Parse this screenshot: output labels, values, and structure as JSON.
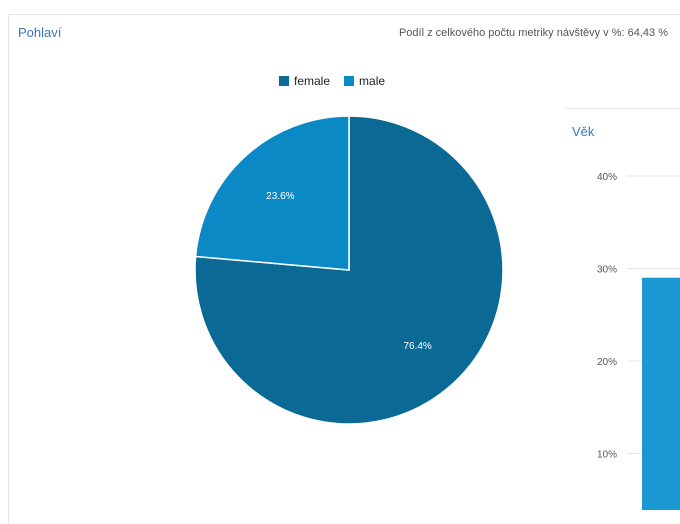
{
  "gender_panel": {
    "title": "Pohlaví",
    "subtitle": "Podíl z celkového počtu metriky návštěvy v %: 64,43 %"
  },
  "age_panel": {
    "title": "Věk"
  },
  "chart_data": [
    {
      "type": "pie",
      "legend": {
        "placement": "top"
      },
      "slices": [
        {
          "name": "female",
          "value": 76.4,
          "label": "76.4%",
          "color": "#0b6a95"
        },
        {
          "name": "male",
          "value": 23.6,
          "label": "23.6%",
          "color": "#0b89c4"
        }
      ]
    },
    {
      "type": "bar",
      "ylim": [
        0,
        40
      ],
      "yticks": [
        {
          "value": 40,
          "label": "40%"
        },
        {
          "value": 30,
          "label": "30%"
        },
        {
          "value": 20,
          "label": "20%"
        },
        {
          "value": 10,
          "label": "10%"
        }
      ],
      "values": [
        29
      ],
      "color": "#1b98d3",
      "grid": true
    }
  ]
}
